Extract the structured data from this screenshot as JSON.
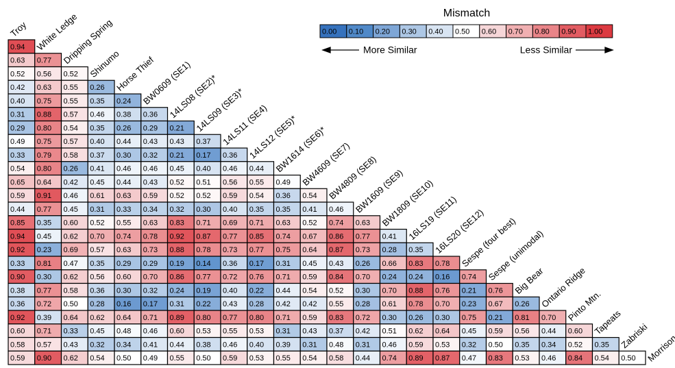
{
  "chart_data": {
    "type": "heatmap",
    "labels": [
      "Troy",
      "White Ledge",
      "Dripping Spring",
      "Shinumo",
      "Horse Thief",
      "BW0609 (SE1)",
      "14LS08 (SE2)*",
      "14LS09 (SE3)*",
      "14LS11 (SE4)",
      "14LS12 (SE5)*",
      "BW1614 (SE6)*",
      "BW4609 (SE7)",
      "BW4809 (SE8)",
      "BW1609 (SE9)",
      "BW1809 (SE10)",
      "16LS19 (SE11)",
      "16LS20 (SE12)",
      "Sespe (four best)",
      "Sespe (unimodal)",
      "Big Bear",
      "Ontario Ridge",
      "Pinto Mtn.",
      "Tapeats",
      "Zabriski",
      "Morrison"
    ],
    "values": [
      [
        0.94
      ],
      [
        0.63,
        0.77
      ],
      [
        0.52,
        0.56,
        0.52
      ],
      [
        0.42,
        0.63,
        0.55,
        0.26
      ],
      [
        0.4,
        0.75,
        0.55,
        0.35,
        0.24
      ],
      [
        0.31,
        0.88,
        0.57,
        0.46,
        0.38,
        0.36
      ],
      [
        0.29,
        0.8,
        0.54,
        0.35,
        0.26,
        0.29,
        0.21
      ],
      [
        0.49,
        0.75,
        0.57,
        0.4,
        0.44,
        0.43,
        0.43,
        0.37
      ],
      [
        0.33,
        0.79,
        0.58,
        0.37,
        0.3,
        0.32,
        0.21,
        0.17,
        0.36
      ],
      [
        0.54,
        0.8,
        0.26,
        0.41,
        0.46,
        0.46,
        0.45,
        0.4,
        0.46,
        0.44
      ],
      [
        0.65,
        0.64,
        0.42,
        0.45,
        0.44,
        0.43,
        0.52,
        0.51,
        0.56,
        0.55,
        0.49
      ],
      [
        0.59,
        0.91,
        0.46,
        0.61,
        0.63,
        0.59,
        0.52,
        0.52,
        0.59,
        0.54,
        0.36,
        0.54
      ],
      [
        0.44,
        0.77,
        0.45,
        0.31,
        0.33,
        0.34,
        0.32,
        0.3,
        0.4,
        0.35,
        0.35,
        0.41,
        0.46
      ],
      [
        0.85,
        0.35,
        0.6,
        0.52,
        0.55,
        0.63,
        0.83,
        0.71,
        0.69,
        0.71,
        0.63,
        0.52,
        0.74,
        0.63
      ],
      [
        0.94,
        0.45,
        0.62,
        0.7,
        0.74,
        0.78,
        0.92,
        0.87,
        0.77,
        0.85,
        0.74,
        0.67,
        0.86,
        0.77,
        0.41
      ],
      [
        0.92,
        0.23,
        0.69,
        0.57,
        0.63,
        0.73,
        0.88,
        0.78,
        0.73,
        0.77,
        0.75,
        0.64,
        0.87,
        0.73,
        0.28,
        0.35
      ],
      [
        0.33,
        0.81,
        0.47,
        0.35,
        0.29,
        0.29,
        0.19,
        0.14,
        0.36,
        0.17,
        0.31,
        0.45,
        0.43,
        0.26,
        0.66,
        0.83,
        0.78
      ],
      [
        0.9,
        0.3,
        0.62,
        0.56,
        0.6,
        0.7,
        0.86,
        0.77,
        0.72,
        0.76,
        0.71,
        0.59,
        0.84,
        0.7,
        0.24,
        0.24,
        0.16,
        0.74
      ],
      [
        0.38,
        0.77,
        0.58,
        0.36,
        0.3,
        0.32,
        0.24,
        0.19,
        0.4,
        0.22,
        0.44,
        0.54,
        0.52,
        0.3,
        0.7,
        0.88,
        0.76,
        0.21,
        0.76
      ],
      [
        0.36,
        0.72,
        0.5,
        0.28,
        0.16,
        0.17,
        0.31,
        0.22,
        0.43,
        0.28,
        0.42,
        0.42,
        0.55,
        0.28,
        0.61,
        0.78,
        0.7,
        0.23,
        0.67,
        0.26
      ],
      [
        0.92,
        0.39,
        0.64,
        0.62,
        0.64,
        0.71,
        0.89,
        0.8,
        0.77,
        0.8,
        0.71,
        0.59,
        0.83,
        0.72,
        0.3,
        0.26,
        0.3,
        0.75,
        0.21,
        0.81,
        0.7
      ],
      [
        0.6,
        0.71,
        0.33,
        0.45,
        0.48,
        0.46,
        0.6,
        0.53,
        0.55,
        0.53,
        0.31,
        0.43,
        0.37,
        0.42,
        0.51,
        0.62,
        0.64,
        0.45,
        0.59,
        0.56,
        0.44,
        0.6
      ],
      [
        0.58,
        0.57,
        0.43,
        0.32,
        0.34,
        0.41,
        0.44,
        0.38,
        0.46,
        0.4,
        0.39,
        0.31,
        0.48,
        0.31,
        0.46,
        0.59,
        0.53,
        0.32,
        0.5,
        0.35,
        0.34,
        0.52,
        0.35
      ],
      [
        0.59,
        0.9,
        0.62,
        0.54,
        0.5,
        0.49,
        0.55,
        0.5,
        0.59,
        0.53,
        0.55,
        0.54,
        0.58,
        0.44,
        0.74,
        0.89,
        0.87,
        0.47,
        0.83,
        0.53,
        0.46,
        0.84,
        0.54,
        0.5
      ]
    ],
    "value_labels": [
      [
        "0.94"
      ],
      [
        "0.63",
        "0.77"
      ],
      [
        "0.52",
        "0.56",
        "0.52"
      ],
      [
        "0.42",
        "0.63",
        "0.55",
        "0.26"
      ],
      [
        "0.40",
        "0.75",
        "0.55",
        "0.35",
        "0.24"
      ],
      [
        "0.31",
        "0.88",
        "0.57",
        "0.46",
        "0.38",
        "0.36"
      ],
      [
        "0.29",
        "0.80",
        "0.54",
        "0.35",
        "0.26",
        "0.29",
        "0.21"
      ],
      [
        "0.49",
        "0.75",
        "0.57",
        "0.40",
        "0.44",
        "0.43",
        "0.43",
        "0.37"
      ],
      [
        "0.33",
        "0.79",
        "0.58",
        "0.37",
        "0.30",
        "0.32",
        "0.21",
        "0.17",
        "0.36"
      ],
      [
        "0.54",
        "0.80",
        "0.26",
        "0.41",
        "0.46",
        "0.46",
        "0.45",
        "0.40",
        "0.46",
        "0.44"
      ],
      [
        "0.65",
        "0.64",
        "0.42",
        "0.45",
        "0.44",
        "0.43",
        "0.52",
        "0.51",
        "0.56",
        "0.55",
        "0.49"
      ],
      [
        "0.59",
        "0.91",
        "0.46",
        "0.61",
        "0.63",
        "0.59",
        "0.52",
        "0.52",
        "0.59",
        "0.54",
        "0.36",
        "0.54"
      ],
      [
        "0.44",
        "0.77",
        "0.45",
        "0.31",
        "0.33",
        "0.34",
        "0.32",
        "0.30",
        "0.40",
        "0.35",
        "0.35",
        "0.41",
        "0.46"
      ],
      [
        "0.85",
        "0.35",
        "0.60",
        "0.52",
        "0.55",
        "0.63",
        "0.83",
        "0.71",
        "0.69",
        "0.71",
        "0.63",
        "0.52",
        "0.74",
        "0.63"
      ],
      [
        "0.94",
        "0.45",
        "0.62",
        "0.70",
        "0.74",
        "0.78",
        "0.92",
        "0.87",
        "0.77",
        "0.85",
        "0.74",
        "0.67",
        "0.86",
        "0.77",
        "0.41"
      ],
      [
        "0.92",
        "0.23",
        "0.69",
        "0.57",
        "0.63",
        "0.73",
        "0.88",
        "0.78",
        "0.73",
        "0.77",
        "0.75",
        "0.64",
        "0.87",
        "0.73",
        "0.28",
        "0.35"
      ],
      [
        "0.33",
        "0.81",
        "0.47",
        "0.35",
        "0.29",
        "0.29",
        "0.19",
        "0.14",
        "0.36",
        "0.17",
        "0.31",
        "0.45",
        "0.43",
        "0.26",
        "0.66",
        "0.83",
        "0.78"
      ],
      [
        "0.90",
        "0.30",
        "0.62",
        "0.56",
        "0.60",
        "0.70",
        "0.86",
        "0.77",
        "0.72",
        "0.76",
        "0.71",
        "0.59",
        "0.84",
        "0.70",
        "0.24",
        "0.24",
        "0.16",
        "0.74"
      ],
      [
        "0.38",
        "0.77",
        "0.58",
        "0.36",
        "0.30",
        "0.32",
        "0.24",
        "0.19",
        "0.40",
        "0.22",
        "0.44",
        "0.54",
        "0.52",
        "0.30",
        "0.70",
        "0.88",
        "0.76",
        "0.21",
        "0.76"
      ],
      [
        "0.36",
        "0.72",
        "0.50",
        "0.28",
        "0.16",
        "0.17",
        "0.31",
        "0.22",
        "0.43",
        "0.28",
        "0.42",
        "0.42",
        "0.55",
        "0.28",
        "0.61",
        "0.78",
        "0.70",
        "0.23",
        "0.67",
        "0.26"
      ],
      [
        "0.92",
        "0.39",
        "0.64",
        "0.62",
        "0.64",
        "0.71",
        "0.89",
        "0.80",
        "0.77",
        "0.80",
        "0.71",
        "0.59",
        "0.83",
        "0.72",
        "0.30",
        "0.26",
        "0.30",
        "0.75",
        "0.21",
        "0.81",
        "0.70"
      ],
      [
        "0.60",
        "0.71",
        "0.33",
        "0.45",
        "0.48",
        "0.46",
        "0.60",
        "0.53",
        "0.55",
        "0.53",
        "0.31",
        "0.43",
        "0.37",
        "0.42",
        "0.51",
        "0.62",
        "0.64",
        "0.45",
        "0.59",
        "0.56",
        "0.44",
        "0.60"
      ],
      [
        "0.58",
        "0.57",
        "0.43",
        "0.32",
        "0.34",
        "0.41",
        "0.44",
        "0.38",
        "0.46",
        "0.40",
        "0.39",
        "0.31",
        "0.48",
        "0.31",
        "0.46",
        "0.59",
        "0.53",
        "0.32",
        "0.50",
        "0.35",
        "0.34",
        "0.52",
        "0.35"
      ],
      [
        "0.59",
        "0.90",
        "0.62",
        "0.54",
        "0.50",
        "0.49",
        "0.55",
        "0.50",
        "0.59",
        "0.53",
        "0.55",
        "0.54",
        "0.58",
        "0.44",
        "0.74",
        "0.89",
        "0.87",
        "0.47",
        "0.83",
        "0.53",
        "0.46",
        "0.84",
        "0.54",
        "0.50"
      ]
    ],
    "legend": {
      "title": "Mismatch",
      "left_label": "More Similar",
      "right_label": "Less Similar",
      "ticks": [
        {
          "value": 0,
          "label": "0.00"
        },
        {
          "value": 0.1,
          "label": "0.10"
        },
        {
          "value": 0.2,
          "label": "0.20"
        },
        {
          "value": 0.3,
          "label": "0.30"
        },
        {
          "value": 0.4,
          "label": "0.40"
        },
        {
          "value": 0.5,
          "label": "0.50"
        },
        {
          "value": 0.6,
          "label": "0.60"
        },
        {
          "value": 0.7,
          "label": "0.70"
        },
        {
          "value": 0.8,
          "label": "0.80"
        },
        {
          "value": 0.9,
          "label": "0.90"
        },
        {
          "value": 1,
          "label": "1.00"
        }
      ],
      "colors": [
        "#3672bd",
        "#5089c8",
        "#7ea6d6",
        "#adc7e5",
        "#d8e4f2",
        "#ffffff",
        "#f6d6d8",
        "#f0afb1",
        "#e98488",
        "#e25c62",
        "#dc3a41"
      ]
    }
  }
}
